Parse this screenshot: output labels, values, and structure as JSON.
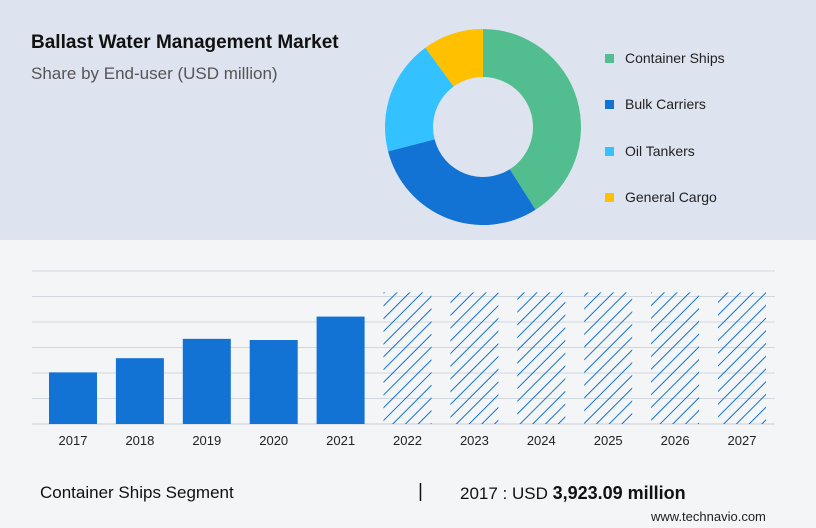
{
  "header": {
    "title": "Ballast Water Management Market",
    "subtitle": "Share by End-user (USD million)"
  },
  "chart_data": [
    {
      "type": "pie",
      "variant": "donut",
      "slices": [
        {
          "name": "Container Ships",
          "value": 41,
          "color": "#52be8f"
        },
        {
          "name": "Bulk Carriers",
          "value": 30,
          "color": "#1273d4"
        },
        {
          "name": "Oil Tankers",
          "value": 19,
          "color": "#33c1ff"
        },
        {
          "name": "General Cargo",
          "value": 10,
          "color": "#ffc000"
        }
      ],
      "legend_position": "right"
    },
    {
      "type": "bar",
      "categories": [
        "2017",
        "2018",
        "2019",
        "2020",
        "2021",
        "2022",
        "2023",
        "2024",
        "2025",
        "2026",
        "2027"
      ],
      "values": [
        3923.09,
        5000,
        6470,
        6380,
        8160,
        10000,
        10000,
        10000,
        10000,
        10000,
        10000
      ],
      "forecast_from": "2022",
      "ylim": [
        0,
        11700
      ],
      "grid": true,
      "bar_color": "#1273d4",
      "hatch_color": "#1273d4"
    }
  ],
  "footer": {
    "segment_label": "Container Ships Segment",
    "separator": "|",
    "year_prefix": "2017 : USD ",
    "value_text": "3,923.09 million",
    "brand": "www.technavio.com"
  }
}
